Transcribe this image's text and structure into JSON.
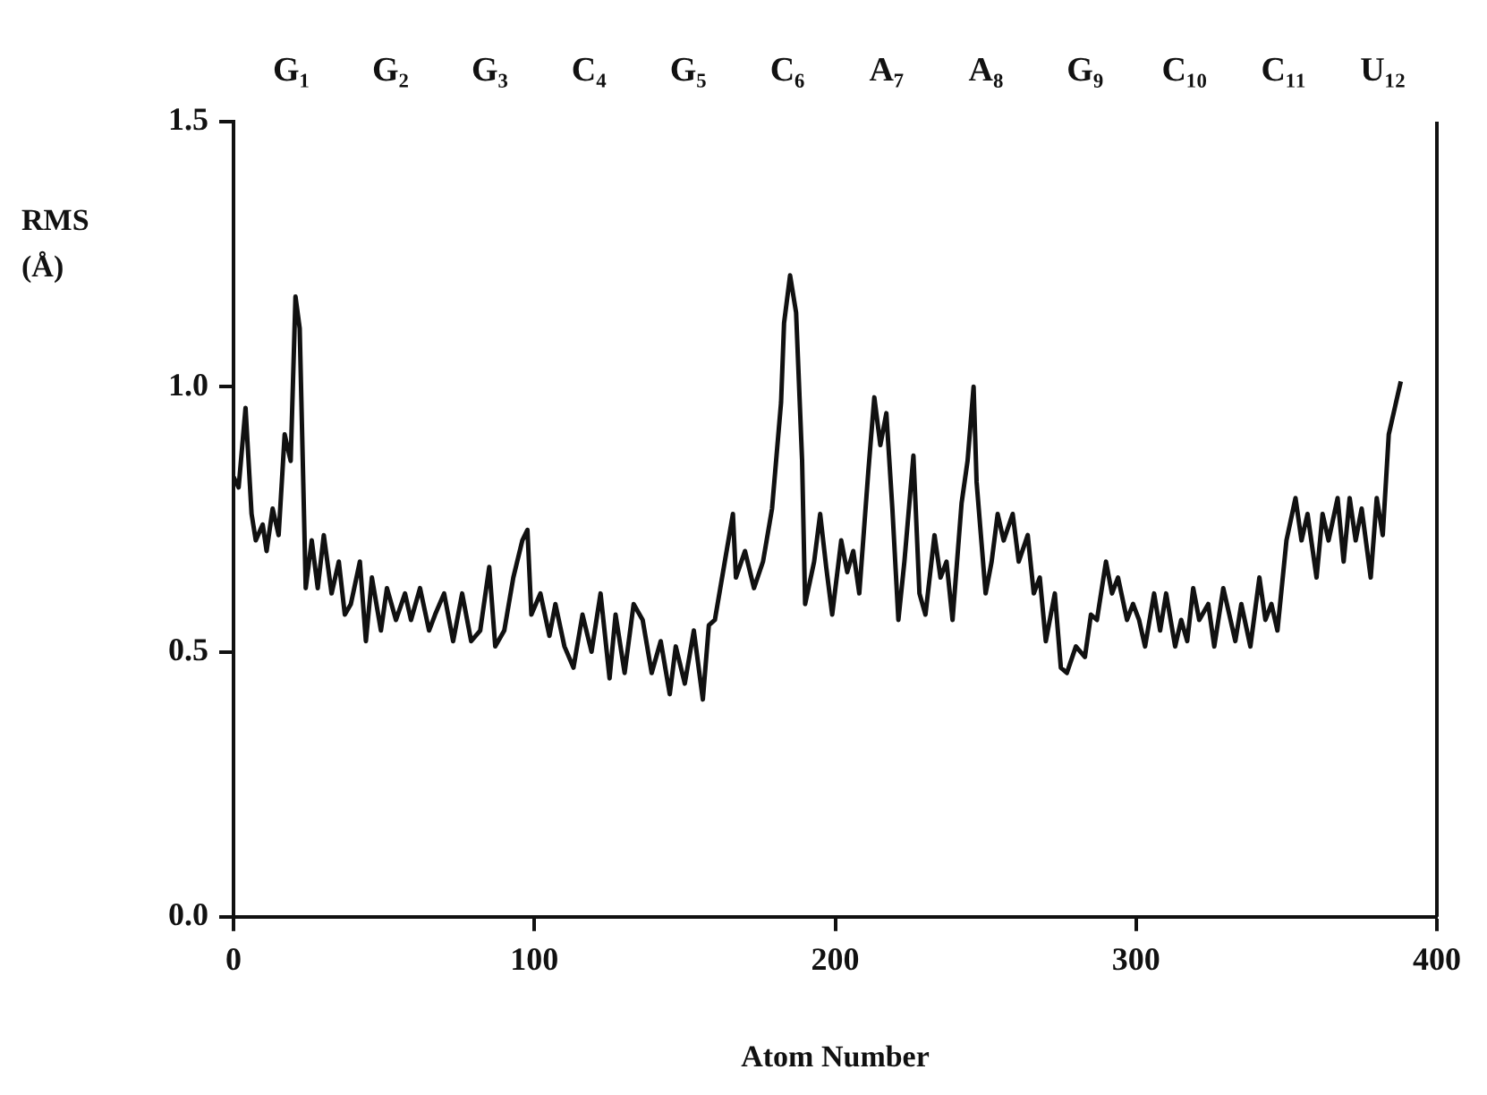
{
  "chart_data": {
    "type": "line",
    "xlabel": "Atom Number",
    "ylabel": "RMS (Å)",
    "series": [
      {
        "color": "#111111",
        "x": [
          0,
          1.7,
          4,
          6,
          7.4,
          9.7,
          11,
          13,
          15,
          17,
          19,
          20.6,
          22,
          24,
          26,
          28,
          30,
          32.6,
          35,
          37,
          39,
          42,
          44,
          46,
          49,
          51,
          54,
          57,
          59,
          62,
          65,
          67,
          70,
          73,
          76,
          79,
          82,
          85,
          87,
          90,
          93,
          96,
          97.7,
          99,
          102,
          105,
          107,
          110,
          113,
          116,
          119,
          122,
          125,
          127,
          130,
          133,
          136,
          139,
          142,
          145,
          147,
          150,
          153,
          156,
          158,
          160,
          163,
          166,
          167,
          170,
          173,
          176,
          179,
          182,
          183,
          185,
          187,
          189,
          190,
          193,
          195,
          197,
          199,
          202,
          204,
          206,
          208,
          211,
          213,
          215,
          217,
          219,
          221,
          223,
          226,
          228,
          230,
          233,
          235,
          237,
          239,
          242,
          244,
          246,
          247,
          250,
          252,
          254,
          256,
          259,
          261,
          264,
          266,
          268,
          270,
          273,
          275,
          277,
          280,
          283,
          285,
          287,
          290,
          292,
          294,
          297,
          299,
          301,
          303,
          306,
          308,
          310,
          313,
          315,
          317,
          319,
          321,
          324,
          326,
          329,
          331,
          333,
          335,
          338,
          341,
          343,
          345,
          347,
          350,
          353,
          355,
          357,
          360,
          362,
          364,
          367,
          369,
          371,
          373,
          375,
          378,
          380,
          382,
          384,
          386,
          388
        ],
        "values": [
          0.83,
          0.81,
          0.96,
          0.76,
          0.71,
          0.74,
          0.69,
          0.77,
          0.72,
          0.91,
          0.86,
          1.17,
          1.11,
          0.62,
          0.71,
          0.62,
          0.72,
          0.61,
          0.67,
          0.57,
          0.59,
          0.67,
          0.52,
          0.64,
          0.54,
          0.62,
          0.56,
          0.61,
          0.56,
          0.62,
          0.54,
          0.57,
          0.61,
          0.52,
          0.61,
          0.52,
          0.54,
          0.66,
          0.51,
          0.54,
          0.64,
          0.71,
          0.73,
          0.57,
          0.61,
          0.53,
          0.59,
          0.51,
          0.47,
          0.57,
          0.5,
          0.61,
          0.45,
          0.57,
          0.46,
          0.59,
          0.56,
          0.46,
          0.52,
          0.42,
          0.51,
          0.44,
          0.54,
          0.41,
          0.55,
          0.56,
          0.66,
          0.76,
          0.64,
          0.69,
          0.62,
          0.67,
          0.77,
          0.97,
          1.12,
          1.21,
          1.14,
          0.86,
          0.59,
          0.67,
          0.76,
          0.66,
          0.57,
          0.71,
          0.65,
          0.69,
          0.61,
          0.84,
          0.98,
          0.89,
          0.95,
          0.77,
          0.56,
          0.67,
          0.87,
          0.61,
          0.57,
          0.72,
          0.64,
          0.67,
          0.56,
          0.78,
          0.86,
          1.0,
          0.82,
          0.61,
          0.67,
          0.76,
          0.71,
          0.76,
          0.67,
          0.72,
          0.61,
          0.64,
          0.52,
          0.61,
          0.47,
          0.46,
          0.51,
          0.49,
          0.57,
          0.56,
          0.67,
          0.61,
          0.64,
          0.56,
          0.59,
          0.56,
          0.51,
          0.61,
          0.54,
          0.61,
          0.51,
          0.56,
          0.52,
          0.62,
          0.56,
          0.59,
          0.51,
          0.62,
          0.57,
          0.52,
          0.59,
          0.51,
          0.64,
          0.56,
          0.59,
          0.54,
          0.71,
          0.79,
          0.71,
          0.76,
          0.64,
          0.76,
          0.71,
          0.79,
          0.67,
          0.79,
          0.71,
          0.77,
          0.64,
          0.79,
          0.72,
          0.91,
          0.96,
          1.01
        ]
      }
    ],
    "xlim": [
      0,
      400
    ],
    "xticks": [
      0,
      100,
      200,
      300,
      400
    ],
    "ylim": [
      0,
      1.5
    ],
    "yticks": [
      {
        "value": 0,
        "label": "0.0"
      },
      0.5,
      {
        "value": 1,
        "label": "1.0"
      },
      1.5
    ],
    "annotations": [
      "G₁",
      "G₂",
      "G₃",
      "C₄",
      "G₅",
      "C₆",
      "A₇",
      "A₈",
      "G₉",
      "C₁₀",
      "C₁₁",
      "U₁₂"
    ],
    "grid": false,
    "legend": false,
    "marker": "none",
    "line_style": "solid"
  }
}
